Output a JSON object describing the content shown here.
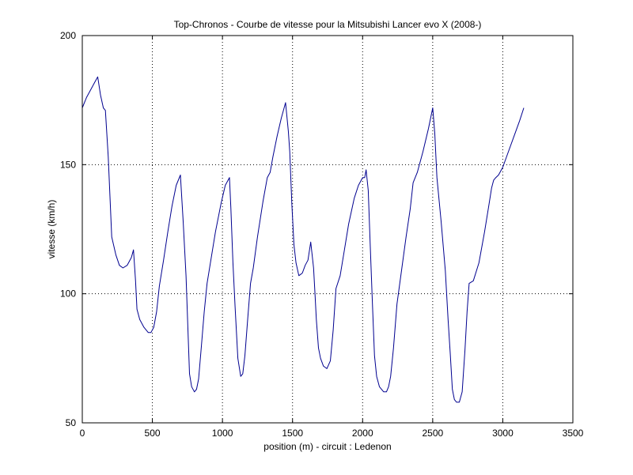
{
  "chart_data": {
    "type": "line",
    "title": "Top-Chronos - Courbe de vitesse pour la Mitsubishi Lancer evo X (2008-)",
    "xlabel": "position (m) - circuit : Ledenon",
    "ylabel": "vitesse (km/h)",
    "xlim": [
      0,
      3500
    ],
    "ylim": [
      50,
      200
    ],
    "xticks": [
      0,
      500,
      1000,
      1500,
      2000,
      2500,
      3000,
      3500
    ],
    "yticks": [
      50,
      100,
      150,
      200
    ],
    "xtick_labels": [
      "0",
      "500",
      "1000",
      "1500",
      "2000",
      "2500",
      "3000",
      "3500"
    ],
    "ytick_labels": [
      "50",
      "100",
      "150",
      "200"
    ],
    "grid": true,
    "line_color": "#00008f",
    "series": [
      {
        "x": [
          0,
          30,
          60,
          90,
          110,
          130,
          150,
          165,
          185,
          210,
          240,
          265,
          290,
          320,
          350,
          365,
          380,
          390,
          410,
          440,
          470,
          490,
          510,
          530,
          550,
          580,
          610,
          640,
          670,
          700,
          720,
          740,
          765,
          780,
          800,
          815,
          830,
          850,
          870,
          890,
          920,
          950,
          990,
          1020,
          1050,
          1060,
          1075,
          1090,
          1110,
          1130,
          1145,
          1160,
          1180,
          1200,
          1220,
          1250,
          1290,
          1320,
          1340,
          1360,
          1390,
          1420,
          1450,
          1470,
          1480,
          1495,
          1510,
          1525,
          1545,
          1570,
          1590,
          1610,
          1630,
          1650,
          1660,
          1670,
          1685,
          1700,
          1720,
          1745,
          1770,
          1790,
          1810,
          1840,
          1870,
          1900,
          1940,
          1970,
          2000,
          2015,
          2025,
          2040,
          2055,
          2070,
          2085,
          2100,
          2120,
          2150,
          2170,
          2185,
          2200,
          2220,
          2245,
          2280,
          2310,
          2340,
          2360,
          2390,
          2430,
          2470,
          2500,
          2515,
          2530,
          2560,
          2590,
          2610,
          2625,
          2640,
          2655,
          2670,
          2690,
          2710,
          2730,
          2745,
          2760,
          2790,
          2830,
          2870,
          2900,
          2920,
          2935,
          2950,
          2970,
          3000,
          3040,
          3080,
          3120,
          3150
        ],
        "y": [
          172,
          176,
          179,
          182,
          184,
          177,
          172,
          171,
          153,
          122,
          115,
          111,
          110,
          111,
          114,
          117,
          105,
          94,
          90,
          87,
          85,
          85,
          87,
          93,
          103,
          113,
          124,
          134,
          142,
          146,
          128,
          107,
          69,
          64,
          62,
          63,
          67,
          80,
          93,
          104,
          114,
          124,
          135,
          142,
          145,
          133,
          112,
          95,
          75,
          68,
          69,
          76,
          90,
          104,
          110,
          122,
          136,
          145,
          147,
          153,
          161,
          168,
          174,
          163,
          155,
          135,
          119,
          112,
          107,
          108,
          111,
          113,
          120,
          110,
          100,
          90,
          79,
          75,
          72,
          71,
          74,
          86,
          102,
          107,
          117,
          127,
          137,
          142,
          145,
          145,
          148,
          140,
          118,
          96,
          76,
          68,
          64,
          62,
          62,
          64,
          68,
          79,
          96,
          110,
          122,
          133,
          143,
          147,
          155,
          164,
          172,
          162,
          145,
          128,
          109,
          90,
          77,
          63,
          59,
          58,
          58,
          62,
          78,
          93,
          104,
          105,
          112,
          124,
          134,
          141,
          144,
          145,
          146,
          149,
          155,
          161,
          167,
          172
        ]
      }
    ]
  }
}
